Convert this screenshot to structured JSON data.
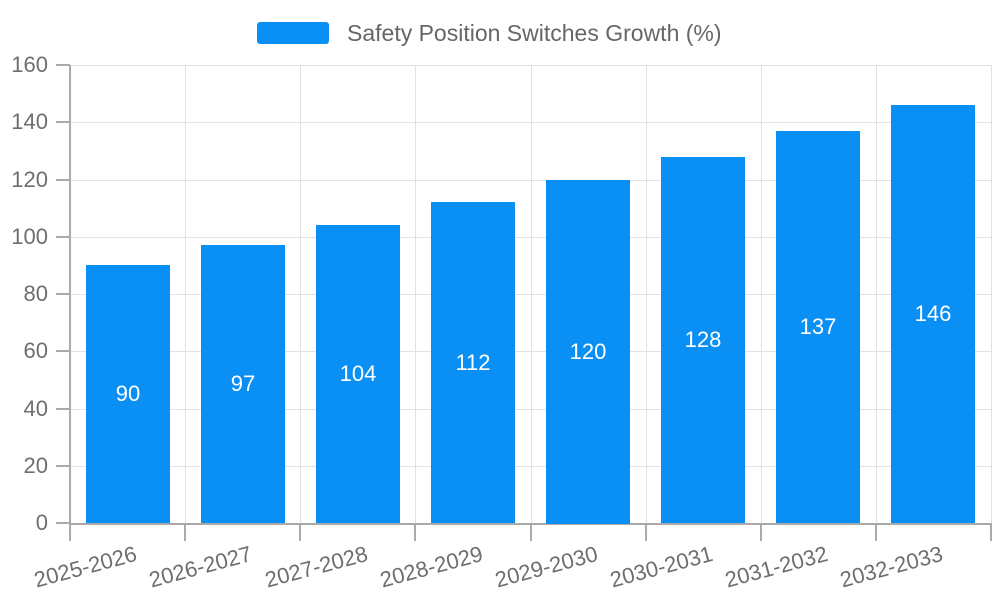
{
  "chart_data": {
    "type": "bar",
    "title": "Safety Position Switches Growth (%)",
    "legend": [
      "Safety Position Switches Growth (%)"
    ],
    "legend_position": "top-center",
    "categories": [
      "2025-2026",
      "2026-2027",
      "2027-2028",
      "2028-2029",
      "2029-2030",
      "2030-2031",
      "2031-2032",
      "2032-2033"
    ],
    "values": [
      90,
      97,
      104,
      112,
      120,
      128,
      137,
      146
    ],
    "xlabel": "",
    "ylabel": "",
    "ylim": [
      0,
      160
    ],
    "yticks": [
      0,
      20,
      40,
      60,
      80,
      100,
      120,
      140,
      160
    ],
    "grid": true,
    "value_labels_position": "inside-center",
    "x_label_rotation_deg": -15,
    "colors": {
      "bar": "#0a90f5",
      "grid_line": "#e2e2e2",
      "axis_line": "#aaaaaa",
      "axis_text": "#6e6e6e",
      "value_label_text": "#ffffff",
      "legend_text": "#666666"
    }
  }
}
